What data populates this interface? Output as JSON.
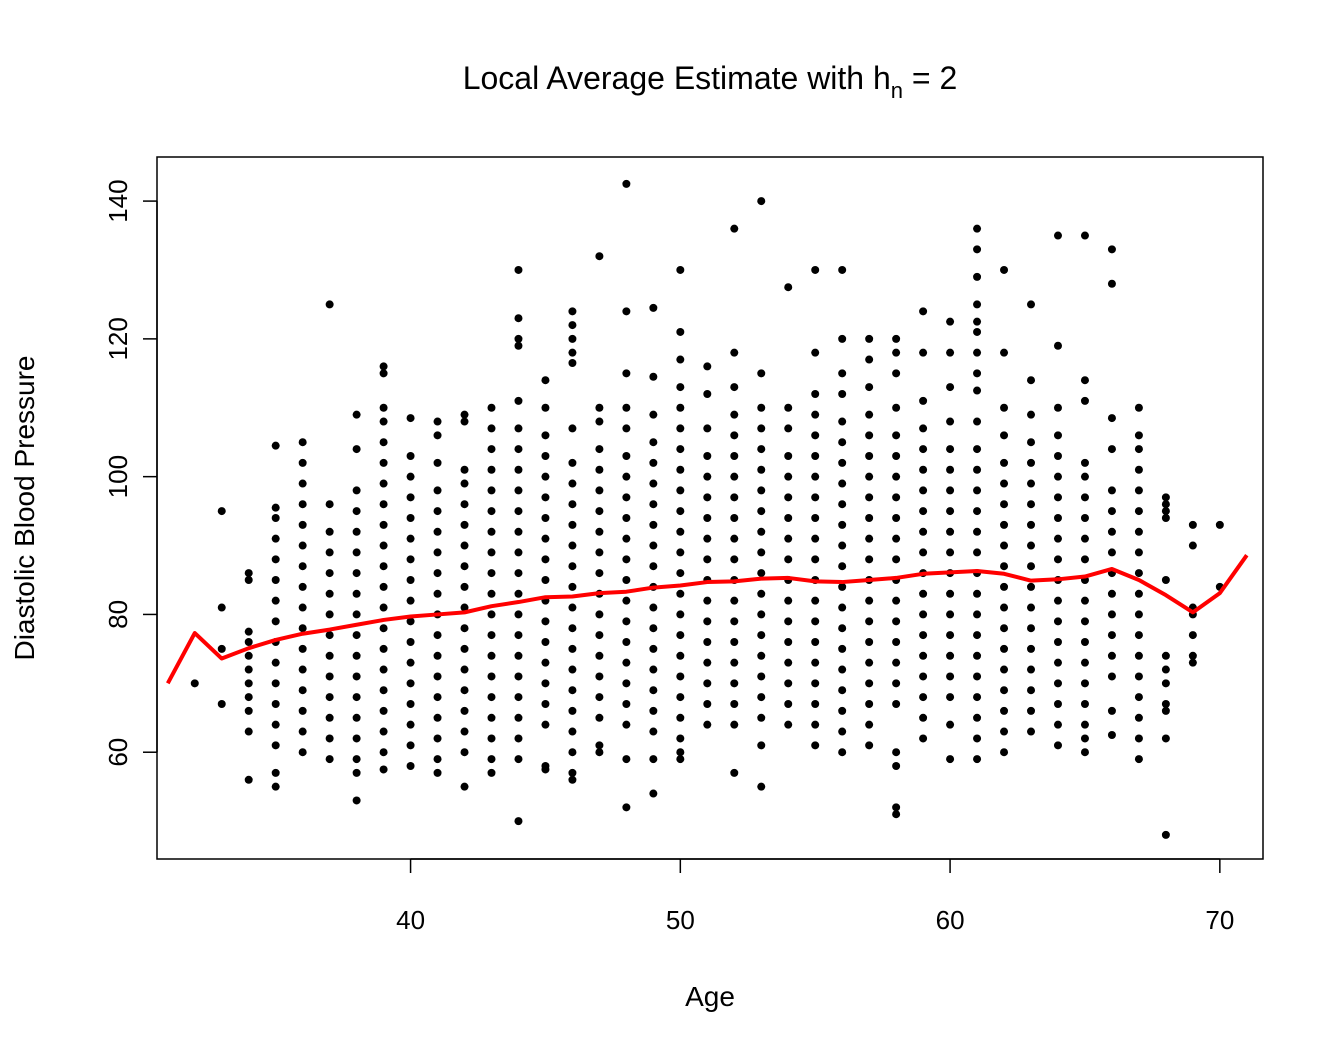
{
  "chart_data": {
    "type": "scatter",
    "title": "Local Average Estimate with h",
    "title_subscript": "n",
    "title_suffix": " = 2",
    "xlabel": "Age",
    "ylabel": "Diastolic Blood Pressure",
    "xlim": [
      30.6,
      71.6
    ],
    "ylim": [
      44.5,
      146.4
    ],
    "xticks": [
      40,
      50,
      60,
      70
    ],
    "yticks": [
      60,
      80,
      100,
      120,
      140
    ],
    "grid": false,
    "colors": {
      "points": "#000000",
      "line": "#ff0000"
    },
    "points": [
      {
        "x": 32,
        "y": [
          70
        ]
      },
      {
        "x": 33,
        "y": [
          67,
          75,
          81,
          95
        ]
      },
      {
        "x": 34,
        "y": [
          56,
          63,
          66,
          68,
          70,
          72,
          74,
          76,
          77.5,
          85,
          86
        ]
      },
      {
        "x": 35,
        "y": [
          55,
          57,
          61,
          64,
          67,
          70,
          73,
          76,
          79,
          82,
          85,
          88,
          91,
          94,
          95.5,
          104.5
        ]
      },
      {
        "x": 36,
        "y": [
          60,
          63,
          66,
          69,
          72,
          75,
          78,
          81,
          84,
          87,
          90,
          93,
          96,
          99,
          102,
          105
        ]
      },
      {
        "x": 37,
        "y": [
          59,
          62,
          65,
          68,
          71,
          74,
          77,
          80,
          83,
          86,
          89,
          92,
          96,
          125
        ]
      },
      {
        "x": 38,
        "y": [
          53,
          57,
          59,
          62,
          65,
          68,
          71,
          74,
          77,
          80,
          83,
          86,
          89,
          92,
          95,
          98,
          104,
          109
        ]
      },
      {
        "x": 39,
        "y": [
          57.5,
          60,
          63,
          66,
          69,
          72,
          75,
          78,
          81,
          84,
          87,
          90,
          93,
          96,
          99,
          102,
          105,
          108,
          110,
          115,
          116
        ]
      },
      {
        "x": 40,
        "y": [
          58,
          61,
          64,
          67,
          70,
          73,
          76,
          79,
          82,
          85,
          88,
          91,
          94,
          97,
          100,
          103,
          108.5
        ]
      },
      {
        "x": 41,
        "y": [
          57,
          59,
          62,
          65,
          68,
          71,
          74,
          77,
          80,
          83,
          86,
          89,
          92,
          95,
          98,
          102,
          106,
          108
        ]
      },
      {
        "x": 42,
        "y": [
          55,
          60,
          63,
          66,
          69,
          72,
          75,
          78,
          81,
          84,
          87,
          90,
          93,
          96,
          99,
          101,
          108,
          109
        ]
      },
      {
        "x": 43,
        "y": [
          57,
          59,
          62,
          65,
          68,
          71,
          74,
          77,
          80,
          83,
          86,
          89,
          92,
          95,
          98,
          101,
          104,
          107,
          110
        ]
      },
      {
        "x": 44,
        "y": [
          50,
          59,
          62,
          65,
          68,
          71,
          74,
          77,
          80,
          83,
          86,
          89,
          92,
          95,
          98,
          101,
          104,
          107,
          111,
          119,
          120,
          123,
          130
        ]
      },
      {
        "x": 45,
        "y": [
          57.5,
          58,
          64,
          67,
          70,
          73,
          76,
          79,
          82,
          85,
          88,
          91,
          94,
          97,
          100,
          103,
          106,
          110,
          114
        ]
      },
      {
        "x": 46,
        "y": [
          56,
          57,
          60,
          63,
          66,
          69,
          72,
          75,
          78,
          81,
          84,
          87,
          90,
          93,
          96,
          99,
          102,
          107,
          116.5,
          118,
          120,
          122,
          124
        ]
      },
      {
        "x": 47,
        "y": [
          60,
          61,
          65,
          68,
          71,
          74,
          77,
          80,
          83,
          86,
          89,
          92,
          95,
          98,
          101,
          104,
          108,
          110,
          132
        ]
      },
      {
        "x": 48,
        "y": [
          52,
          59,
          64,
          67,
          70,
          73,
          76,
          79,
          82,
          85,
          88,
          91,
          94,
          97,
          100,
          103,
          107,
          110,
          115,
          124,
          142.5
        ]
      },
      {
        "x": 49,
        "y": [
          54,
          59,
          63,
          66,
          69,
          72,
          75,
          78,
          81,
          84,
          87,
          90,
          93,
          96,
          99,
          102,
          105,
          109,
          114.5,
          124.5
        ]
      },
      {
        "x": 50,
        "y": [
          59,
          60,
          62,
          65,
          68,
          71,
          74,
          77,
          80,
          83,
          86,
          89,
          92,
          95,
          98,
          101,
          104,
          107,
          110,
          113,
          117,
          121,
          130
        ]
      },
      {
        "x": 51,
        "y": [
          64,
          67,
          70,
          73,
          76,
          79,
          82,
          85,
          88,
          91,
          94,
          97,
          100,
          103,
          107,
          112,
          116
        ]
      },
      {
        "x": 52,
        "y": [
          57,
          64,
          67,
          70,
          73,
          76,
          79,
          82,
          85,
          88,
          91,
          94,
          97,
          100,
          103,
          106,
          109,
          113,
          118,
          136
        ]
      },
      {
        "x": 53,
        "y": [
          55,
          61,
          65,
          68,
          71,
          74,
          77,
          80,
          83,
          86,
          89,
          92,
          95,
          98,
          101,
          104,
          107,
          110,
          115,
          140
        ]
      },
      {
        "x": 54,
        "y": [
          64,
          67,
          70,
          73,
          76,
          79,
          82,
          85,
          88,
          91,
          94,
          97,
          100,
          103,
          107,
          110,
          127.5
        ]
      },
      {
        "x": 55,
        "y": [
          61,
          64,
          67,
          70,
          73,
          76,
          79,
          82,
          85,
          88,
          91,
          94,
          97,
          100,
          103,
          106,
          109,
          112,
          118,
          130
        ]
      },
      {
        "x": 56,
        "y": [
          60,
          63,
          66,
          69,
          72,
          75,
          78,
          81,
          84,
          87,
          90,
          93,
          96,
          99,
          102,
          105,
          108,
          112,
          115,
          120,
          130
        ]
      },
      {
        "x": 57,
        "y": [
          61,
          64,
          67,
          70,
          73,
          76,
          79,
          82,
          85,
          88,
          91,
          94,
          97,
          100,
          103,
          106,
          109,
          113,
          117,
          120
        ]
      },
      {
        "x": 58,
        "y": [
          51,
          52,
          58,
          60,
          67,
          70,
          73,
          76,
          79,
          82,
          85,
          88,
          91,
          94,
          97,
          100,
          103,
          106,
          110,
          115,
          118,
          120
        ]
      },
      {
        "x": 59,
        "y": [
          62,
          65,
          68,
          71,
          74,
          77,
          80,
          83,
          86,
          89,
          92,
          95,
          98,
          101,
          104,
          107,
          111,
          118,
          124
        ]
      },
      {
        "x": 60,
        "y": [
          59,
          64,
          68,
          71,
          74,
          77,
          80,
          83,
          86,
          89,
          92,
          95,
          98,
          101,
          104,
          108,
          113,
          118,
          122.5
        ]
      },
      {
        "x": 61,
        "y": [
          59,
          62,
          65,
          68,
          71,
          74,
          77,
          80,
          83,
          86,
          89,
          92,
          95,
          98,
          101,
          104,
          108,
          112.5,
          115,
          118,
          121,
          122.5,
          125,
          129,
          133,
          136
        ]
      },
      {
        "x": 62,
        "y": [
          60,
          63,
          66,
          69,
          72,
          75,
          78,
          81,
          84,
          87,
          90,
          93,
          96,
          99,
          102,
          106,
          110,
          118,
          130
        ]
      },
      {
        "x": 63,
        "y": [
          63,
          66,
          69,
          72,
          75,
          78,
          81,
          84,
          87,
          90,
          93,
          96,
          99,
          102,
          105,
          109,
          114,
          125
        ]
      },
      {
        "x": 64,
        "y": [
          61,
          64,
          67,
          70,
          73,
          76,
          79,
          82,
          85,
          88,
          91,
          94,
          97,
          100,
          103,
          106,
          110,
          119,
          135
        ]
      },
      {
        "x": 65,
        "y": [
          60,
          62,
          64,
          67,
          70,
          73,
          76,
          79,
          82,
          85,
          88,
          91,
          94,
          97,
          100,
          102,
          111,
          114,
          135
        ]
      },
      {
        "x": 66,
        "y": [
          62.5,
          66,
          71,
          74,
          77,
          80,
          83,
          86,
          89,
          92,
          95,
          98,
          104,
          108.5,
          128,
          133
        ]
      },
      {
        "x": 67,
        "y": [
          59,
          62,
          65,
          68,
          71,
          74,
          77,
          80,
          83,
          86,
          89,
          92,
          95,
          98,
          101,
          104,
          106,
          110
        ]
      },
      {
        "x": 68,
        "y": [
          48,
          62,
          66,
          67,
          70,
          72,
          74,
          85,
          94,
          95,
          96,
          97
        ]
      },
      {
        "x": 69,
        "y": [
          73,
          74,
          77,
          80,
          81,
          90,
          93
        ]
      },
      {
        "x": 70,
        "y": [
          84,
          93
        ]
      }
    ],
    "line": {
      "x": [
        31,
        32,
        33,
        34,
        35,
        36,
        37,
        38,
        39,
        40,
        41,
        42,
        43,
        44,
        45,
        46,
        47,
        48,
        49,
        50,
        51,
        52,
        53,
        54,
        55,
        56,
        57,
        58,
        59,
        60,
        61,
        62,
        63,
        64,
        65,
        66,
        67,
        68,
        69,
        70,
        71
      ],
      "y": [
        70,
        77.3,
        73.6,
        75.1,
        76.3,
        77.2,
        77.8,
        78.5,
        79.2,
        79.7,
        80,
        80.3,
        81.2,
        81.8,
        82.5,
        82.6,
        83.1,
        83.3,
        83.9,
        84.2,
        84.7,
        84.8,
        85.2,
        85.3,
        84.8,
        84.7,
        85,
        85.3,
        85.9,
        86.1,
        86.3,
        85.9,
        84.9,
        85.1,
        85.5,
        86.6,
        85,
        82.8,
        80.3,
        83.1,
        88.6
      ]
    }
  }
}
